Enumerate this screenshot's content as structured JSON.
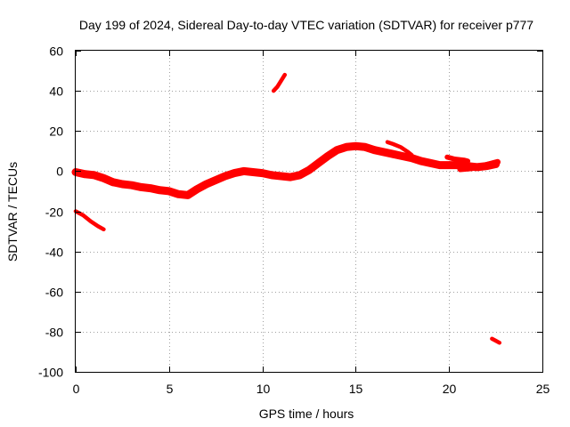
{
  "chart_data": {
    "type": "scatter",
    "title": "Day 199 of 2024, Sidereal Day-to-day VTEC variation (SDTVAR) for receiver p777",
    "xlabel": "GPS time / hours",
    "ylabel": "SDTVAR / TECUs",
    "xlim": [
      0,
      25
    ],
    "ylim": [
      -100,
      60
    ],
    "xticks": [
      "0",
      "5",
      "10",
      "15",
      "20",
      "25"
    ],
    "yticks": [
      "60",
      "40",
      "20",
      "0",
      "-20",
      "-40",
      "-60",
      "-80",
      "-100"
    ],
    "grid": true,
    "series": [
      {
        "name": "main-band",
        "color": "#ff0000",
        "thickness_tecu": 4,
        "points": [
          [
            0.0,
            -0.5
          ],
          [
            0.5,
            -1.5
          ],
          [
            1.0,
            -2.0
          ],
          [
            1.5,
            -3.5
          ],
          [
            2.0,
            -5.5
          ],
          [
            2.5,
            -6.5
          ],
          [
            3.0,
            -7.0
          ],
          [
            3.5,
            -8.0
          ],
          [
            4.0,
            -8.5
          ],
          [
            4.5,
            -9.5
          ],
          [
            5.0,
            -10.0
          ],
          [
            5.5,
            -11.5
          ],
          [
            6.0,
            -12.0
          ],
          [
            6.5,
            -9.0
          ],
          [
            7.0,
            -6.5
          ],
          [
            7.5,
            -4.5
          ],
          [
            8.0,
            -2.5
          ],
          [
            8.5,
            -1.0
          ],
          [
            9.0,
            0.0
          ],
          [
            9.5,
            -0.5
          ],
          [
            10.0,
            -1.0
          ],
          [
            10.5,
            -2.0
          ],
          [
            11.0,
            -2.5
          ],
          [
            11.5,
            -3.0
          ],
          [
            12.0,
            -2.0
          ],
          [
            12.5,
            0.5
          ],
          [
            13.0,
            4.0
          ],
          [
            13.5,
            7.5
          ],
          [
            14.0,
            10.5
          ],
          [
            14.5,
            12.0
          ],
          [
            15.0,
            12.5
          ],
          [
            15.5,
            12.0
          ],
          [
            16.0,
            10.5
          ],
          [
            16.5,
            9.5
          ],
          [
            17.0,
            8.5
          ],
          [
            17.5,
            7.5
          ],
          [
            18.0,
            6.5
          ],
          [
            18.5,
            5.0
          ],
          [
            19.0,
            4.0
          ],
          [
            19.5,
            3.0
          ],
          [
            20.0,
            3.0
          ],
          [
            20.5,
            3.0
          ],
          [
            21.0,
            2.5
          ],
          [
            21.5,
            2.0
          ],
          [
            22.0,
            2.5
          ],
          [
            22.5,
            3.5
          ]
        ]
      },
      {
        "name": "segment-15-17",
        "color": "#ff0000",
        "thickness_tecu": 3,
        "points": [
          [
            15.5,
            11.5
          ],
          [
            16.0,
            11.0
          ],
          [
            16.5,
            9.5
          ],
          [
            17.0,
            8.0
          ]
        ]
      },
      {
        "name": "segment-20-21",
        "color": "#ff0000",
        "thickness_tecu": 2.5,
        "points": [
          [
            19.9,
            7.0
          ],
          [
            20.3,
            6.0
          ],
          [
            20.8,
            5.5
          ],
          [
            21.0,
            5.0
          ]
        ]
      },
      {
        "name": "segment-22",
        "color": "#ff0000",
        "thickness_tecu": 3,
        "points": [
          [
            20.6,
            1.0
          ],
          [
            21.2,
            1.5
          ],
          [
            21.8,
            2.5
          ],
          [
            22.4,
            4.0
          ],
          [
            22.6,
            4.5
          ]
        ]
      },
      {
        "name": "segment-early",
        "color": "#ff0000",
        "thickness_tecu": 2,
        "points": [
          [
            0.0,
            -20.0
          ],
          [
            0.4,
            -22.0
          ],
          [
            0.8,
            -25.0
          ],
          [
            1.2,
            -27.5
          ],
          [
            1.5,
            -29.0
          ]
        ]
      },
      {
        "name": "segment-high",
        "color": "#ff0000",
        "thickness_tecu": 2,
        "points": [
          [
            10.6,
            40.0
          ],
          [
            10.8,
            42.0
          ],
          [
            11.0,
            45.0
          ],
          [
            11.2,
            48.0
          ]
        ]
      },
      {
        "name": "segment-low",
        "color": "#ff0000",
        "thickness_tecu": 2,
        "points": [
          [
            22.3,
            -83.5
          ],
          [
            22.5,
            -84.5
          ],
          [
            22.7,
            -85.5
          ]
        ]
      },
      {
        "name": "segment-17",
        "color": "#ff0000",
        "thickness_tecu": 2,
        "points": [
          [
            16.7,
            14.5
          ],
          [
            17.0,
            13.5
          ],
          [
            17.4,
            12.0
          ],
          [
            17.8,
            9.5
          ],
          [
            18.0,
            8.0
          ]
        ]
      }
    ]
  }
}
